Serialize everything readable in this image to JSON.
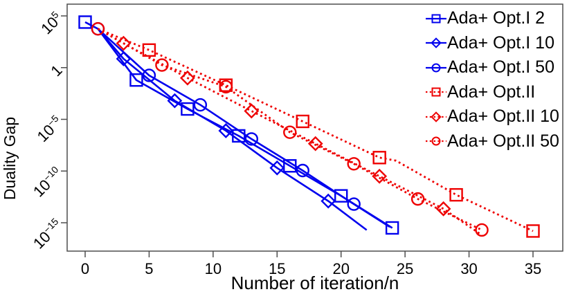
{
  "chart_data": {
    "type": "line",
    "title": "",
    "xlabel": "Number of iteration/n",
    "ylabel": "Duality Gap",
    "grid": false,
    "legend_position": "top-right",
    "x_axis": {
      "min": -1.4,
      "max": 37.3,
      "ticks": [
        0,
        5,
        10,
        15,
        20,
        25,
        30,
        35
      ]
    },
    "y_axis": {
      "scale": "log10",
      "min_exp": -17.9,
      "max_exp": 6.1,
      "ticks": [
        {
          "mantissa": "10",
          "exponent": "5",
          "exp": 5
        },
        {
          "mantissa": "1",
          "exponent": "",
          "exp": 0
        },
        {
          "mantissa": "10",
          "exponent": "−5",
          "exp": -5
        },
        {
          "mantissa": "10",
          "exponent": "−10",
          "exp": -10
        },
        {
          "mantissa": "10",
          "exponent": "−15",
          "exp": -15
        }
      ]
    },
    "colors": {
      "opt1": "#0000ee",
      "opt2": "#ee0000",
      "axis": "#4d4d4d",
      "text": "#000000"
    },
    "series": [
      {
        "name": "Ada+ Opt.I 2",
        "color": "#0000ee",
        "marker": "square",
        "linestyle": "solid",
        "points_log10": [
          [
            0,
            4.4
          ],
          [
            1,
            3.75
          ],
          [
            4,
            -1.2
          ],
          [
            8,
            -4.0
          ],
          [
            12,
            -6.6
          ],
          [
            16,
            -9.5
          ],
          [
            20,
            -12.4
          ],
          [
            24,
            -15.5
          ]
        ],
        "marker_points_log10": [
          [
            0,
            4.4
          ],
          [
            4,
            -1.2
          ],
          [
            8,
            -4.0
          ],
          [
            12,
            -6.6
          ],
          [
            16,
            -9.5
          ],
          [
            20,
            -12.4
          ],
          [
            24,
            -15.5
          ]
        ]
      },
      {
        "name": "Ada+ Opt.I 10",
        "color": "#0000ee",
        "marker": "diamond",
        "linestyle": "solid",
        "points_log10": [
          [
            1,
            3.75
          ],
          [
            3,
            0.85
          ],
          [
            7,
            -3.2
          ],
          [
            11,
            -6.1
          ],
          [
            15,
            -9.7
          ],
          [
            19,
            -12.9
          ],
          [
            22,
            -15.7
          ]
        ],
        "marker_points_log10": [
          [
            3,
            0.85
          ],
          [
            7,
            -3.2
          ],
          [
            11,
            -6.1
          ],
          [
            15,
            -9.7
          ],
          [
            19,
            -12.9
          ]
        ]
      },
      {
        "name": "Ada+ Opt.I 50",
        "color": "#0000ee",
        "marker": "circle",
        "linestyle": "solid",
        "points_log10": [
          [
            1,
            3.75
          ],
          [
            5,
            -0.75
          ],
          [
            9,
            -3.6
          ],
          [
            13,
            -6.9
          ],
          [
            17,
            -9.95
          ],
          [
            21,
            -13.2
          ],
          [
            23.8,
            -15.4
          ]
        ],
        "marker_points_log10": [
          [
            1,
            3.75
          ],
          [
            5,
            -0.75
          ],
          [
            9,
            -3.6
          ],
          [
            13,
            -6.9
          ],
          [
            17,
            -9.95
          ],
          [
            21,
            -13.2
          ]
        ]
      },
      {
        "name": "Ada+ Opt.II",
        "color": "#ee0000",
        "marker": "square",
        "linestyle": "dotted",
        "points_log10": [
          [
            1,
            3.75
          ],
          [
            5,
            1.7
          ],
          [
            11,
            -1.7
          ],
          [
            17,
            -5.2
          ],
          [
            23,
            -8.7
          ],
          [
            24.3,
            -9.0
          ],
          [
            29,
            -12.3
          ],
          [
            35,
            -15.8
          ]
        ],
        "marker_points_log10": [
          [
            5,
            1.7
          ],
          [
            11,
            -1.7
          ],
          [
            17,
            -5.2
          ],
          [
            23,
            -8.7
          ],
          [
            29,
            -12.3
          ],
          [
            35,
            -15.8
          ]
        ]
      },
      {
        "name": "Ada+ Opt.II 10",
        "color": "#ee0000",
        "marker": "diamond",
        "linestyle": "dotted",
        "points_log10": [
          [
            1,
            3.75
          ],
          [
            3,
            2.35
          ],
          [
            8,
            -1.0
          ],
          [
            13,
            -4.2
          ],
          [
            18,
            -7.35
          ],
          [
            23,
            -10.5
          ],
          [
            28,
            -13.65
          ],
          [
            31,
            -16.2
          ]
        ],
        "marker_points_log10": [
          [
            3,
            2.35
          ],
          [
            8,
            -1.0
          ],
          [
            13,
            -4.2
          ],
          [
            18,
            -7.35
          ],
          [
            23,
            -10.5
          ],
          [
            28,
            -13.65
          ]
        ]
      },
      {
        "name": "Ada+ Opt.II 50",
        "color": "#ee0000",
        "marker": "circle",
        "linestyle": "dotted",
        "points_log10": [
          [
            1,
            3.75
          ],
          [
            6,
            0.25
          ],
          [
            11,
            -1.85
          ],
          [
            16,
            -6.25
          ],
          [
            21,
            -9.3
          ],
          [
            26,
            -12.7
          ],
          [
            31,
            -15.7
          ]
        ],
        "marker_points_log10": [
          [
            1,
            3.75
          ],
          [
            6,
            0.25
          ],
          [
            11,
            -1.85
          ],
          [
            16,
            -6.25
          ],
          [
            21,
            -9.3
          ],
          [
            26,
            -12.7
          ],
          [
            31,
            -15.7
          ]
        ]
      }
    ]
  }
}
